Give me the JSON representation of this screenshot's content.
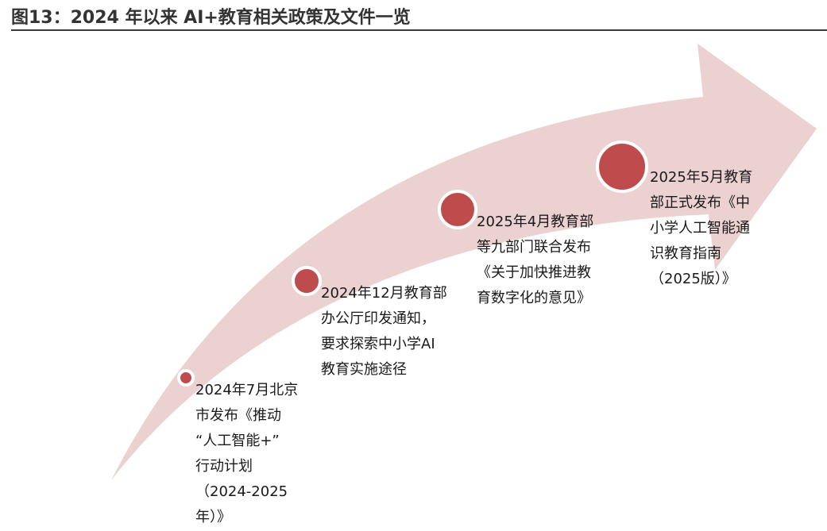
{
  "title": "图13：2024 年以来 AI+教育相关政策及文件一览",
  "colors": {
    "arrow_fill": "#ecd1d1",
    "dot_fill": "#bf4c4d",
    "dot_stroke": "#ffffff",
    "title_rule": "#3a3a3a"
  },
  "events": [
    {
      "lines": [
        "2024年7月北京",
        "市发布《推动",
        "“人工智能+”",
        "行动计划",
        "（2024-2025",
        "年）》"
      ]
    },
    {
      "lines": [
        "2024年12月教育部",
        "办公厅印发通知，",
        "要求探索中小学AI",
        "教育实施途径"
      ]
    },
    {
      "lines": [
        "2025年4月教育部",
        "等九部门联合发布",
        "《关于加快推进教",
        "育数字化的意见》"
      ]
    },
    {
      "lines": [
        "2025年5月教育",
        "部正式发布《中",
        "小学人工智能通",
        "识教育指南",
        "（2025版）》"
      ]
    }
  ]
}
